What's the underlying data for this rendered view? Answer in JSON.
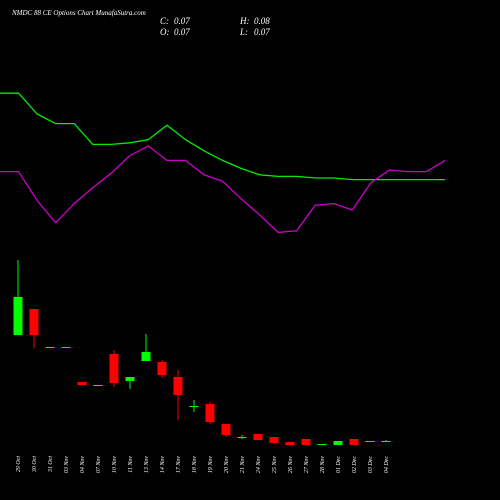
{
  "chart_data": {
    "type": "candlestick",
    "title": "NMDC 88 CE Options  Chart MunafaSutra.com",
    "info": [
      {
        "label": "C:",
        "value": 0.07
      },
      {
        "label": "H:",
        "value": 0.08
      },
      {
        "label": "O:",
        "value": 0.07
      },
      {
        "label": "L:",
        "value": 0.07
      }
    ],
    "categories": [
      "29 Oct",
      "30 Oct",
      "31 Oct",
      "03 Nov",
      "04 Nov",
      "07 Nov",
      "10 Nov",
      "11 Nov",
      "13 Nov",
      "14 Nov",
      "17 Nov",
      "18 Nov",
      "19 Nov",
      "20 Nov",
      "21 Nov",
      "24 Nov",
      "25 Nov",
      "26 Nov",
      "27 Nov",
      "28 Nov",
      "01 Dec",
      "02 Dec",
      "03 Dec",
      "04 Dec"
    ],
    "open": [
      1.13,
      1.39,
      1.01,
      1.01,
      0.66,
      0.63,
      0.94,
      0.67,
      0.87,
      0.86,
      0.71,
      0.42,
      0.44,
      0.24,
      0.11,
      0.14,
      0.11,
      0.06,
      0.09,
      0.04,
      0.03,
      0.09,
      0.07,
      0.07
    ],
    "high": [
      1.88,
      1.39,
      1.01,
      1.01,
      0.66,
      0.63,
      0.98,
      0.71,
      1.14,
      0.88,
      0.78,
      0.48,
      0.46,
      0.24,
      0.13,
      0.14,
      0.11,
      0.06,
      0.09,
      0.04,
      0.07,
      0.09,
      0.07,
      0.08
    ],
    "low": [
      1.13,
      1.0,
      1.01,
      1.01,
      0.63,
      0.63,
      0.61,
      0.59,
      0.87,
      0.7,
      0.28,
      0.36,
      0.24,
      0.11,
      0.09,
      0.08,
      0.05,
      0.03,
      0.03,
      0.04,
      0.03,
      0.03,
      0.07,
      0.07
    ],
    "close": [
      1.51,
      1.13,
      1.01,
      1.01,
      0.63,
      0.63,
      0.65,
      0.71,
      0.96,
      0.73,
      0.53,
      0.42,
      0.26,
      0.13,
      0.11,
      0.08,
      0.05,
      0.03,
      0.03,
      0.04,
      0.07,
      0.03,
      0.07,
      0.07
    ],
    "up_color": "#00ff00",
    "down_color": "#ff0000",
    "ylim": [
      0,
      2
    ],
    "lines": {
      "x": [
        0,
        1,
        2,
        3,
        4,
        5,
        6,
        7,
        8,
        9,
        10,
        11,
        12,
        13,
        14,
        15,
        16,
        17,
        18,
        19,
        20,
        21,
        22,
        23,
        24
      ],
      "xlim": [
        0,
        24
      ],
      "ylim": [
        0,
        100
      ],
      "series": [
        {
          "color": "#00ee00",
          "values": [
            98,
            98,
            85,
            79,
            79,
            66,
            66,
            67,
            69,
            78,
            69,
            62,
            56,
            51,
            47,
            46,
            46,
            45,
            45,
            44,
            44,
            44,
            44,
            44,
            44
          ]
        },
        {
          "color": "#cc00cc",
          "values": [
            49,
            49,
            31,
            17,
            29,
            39,
            48,
            59,
            65,
            56,
            56,
            47,
            43,
            32,
            22,
            11,
            12,
            28,
            29,
            25,
            42,
            50,
            49,
            49,
            56
          ]
        }
      ]
    }
  }
}
